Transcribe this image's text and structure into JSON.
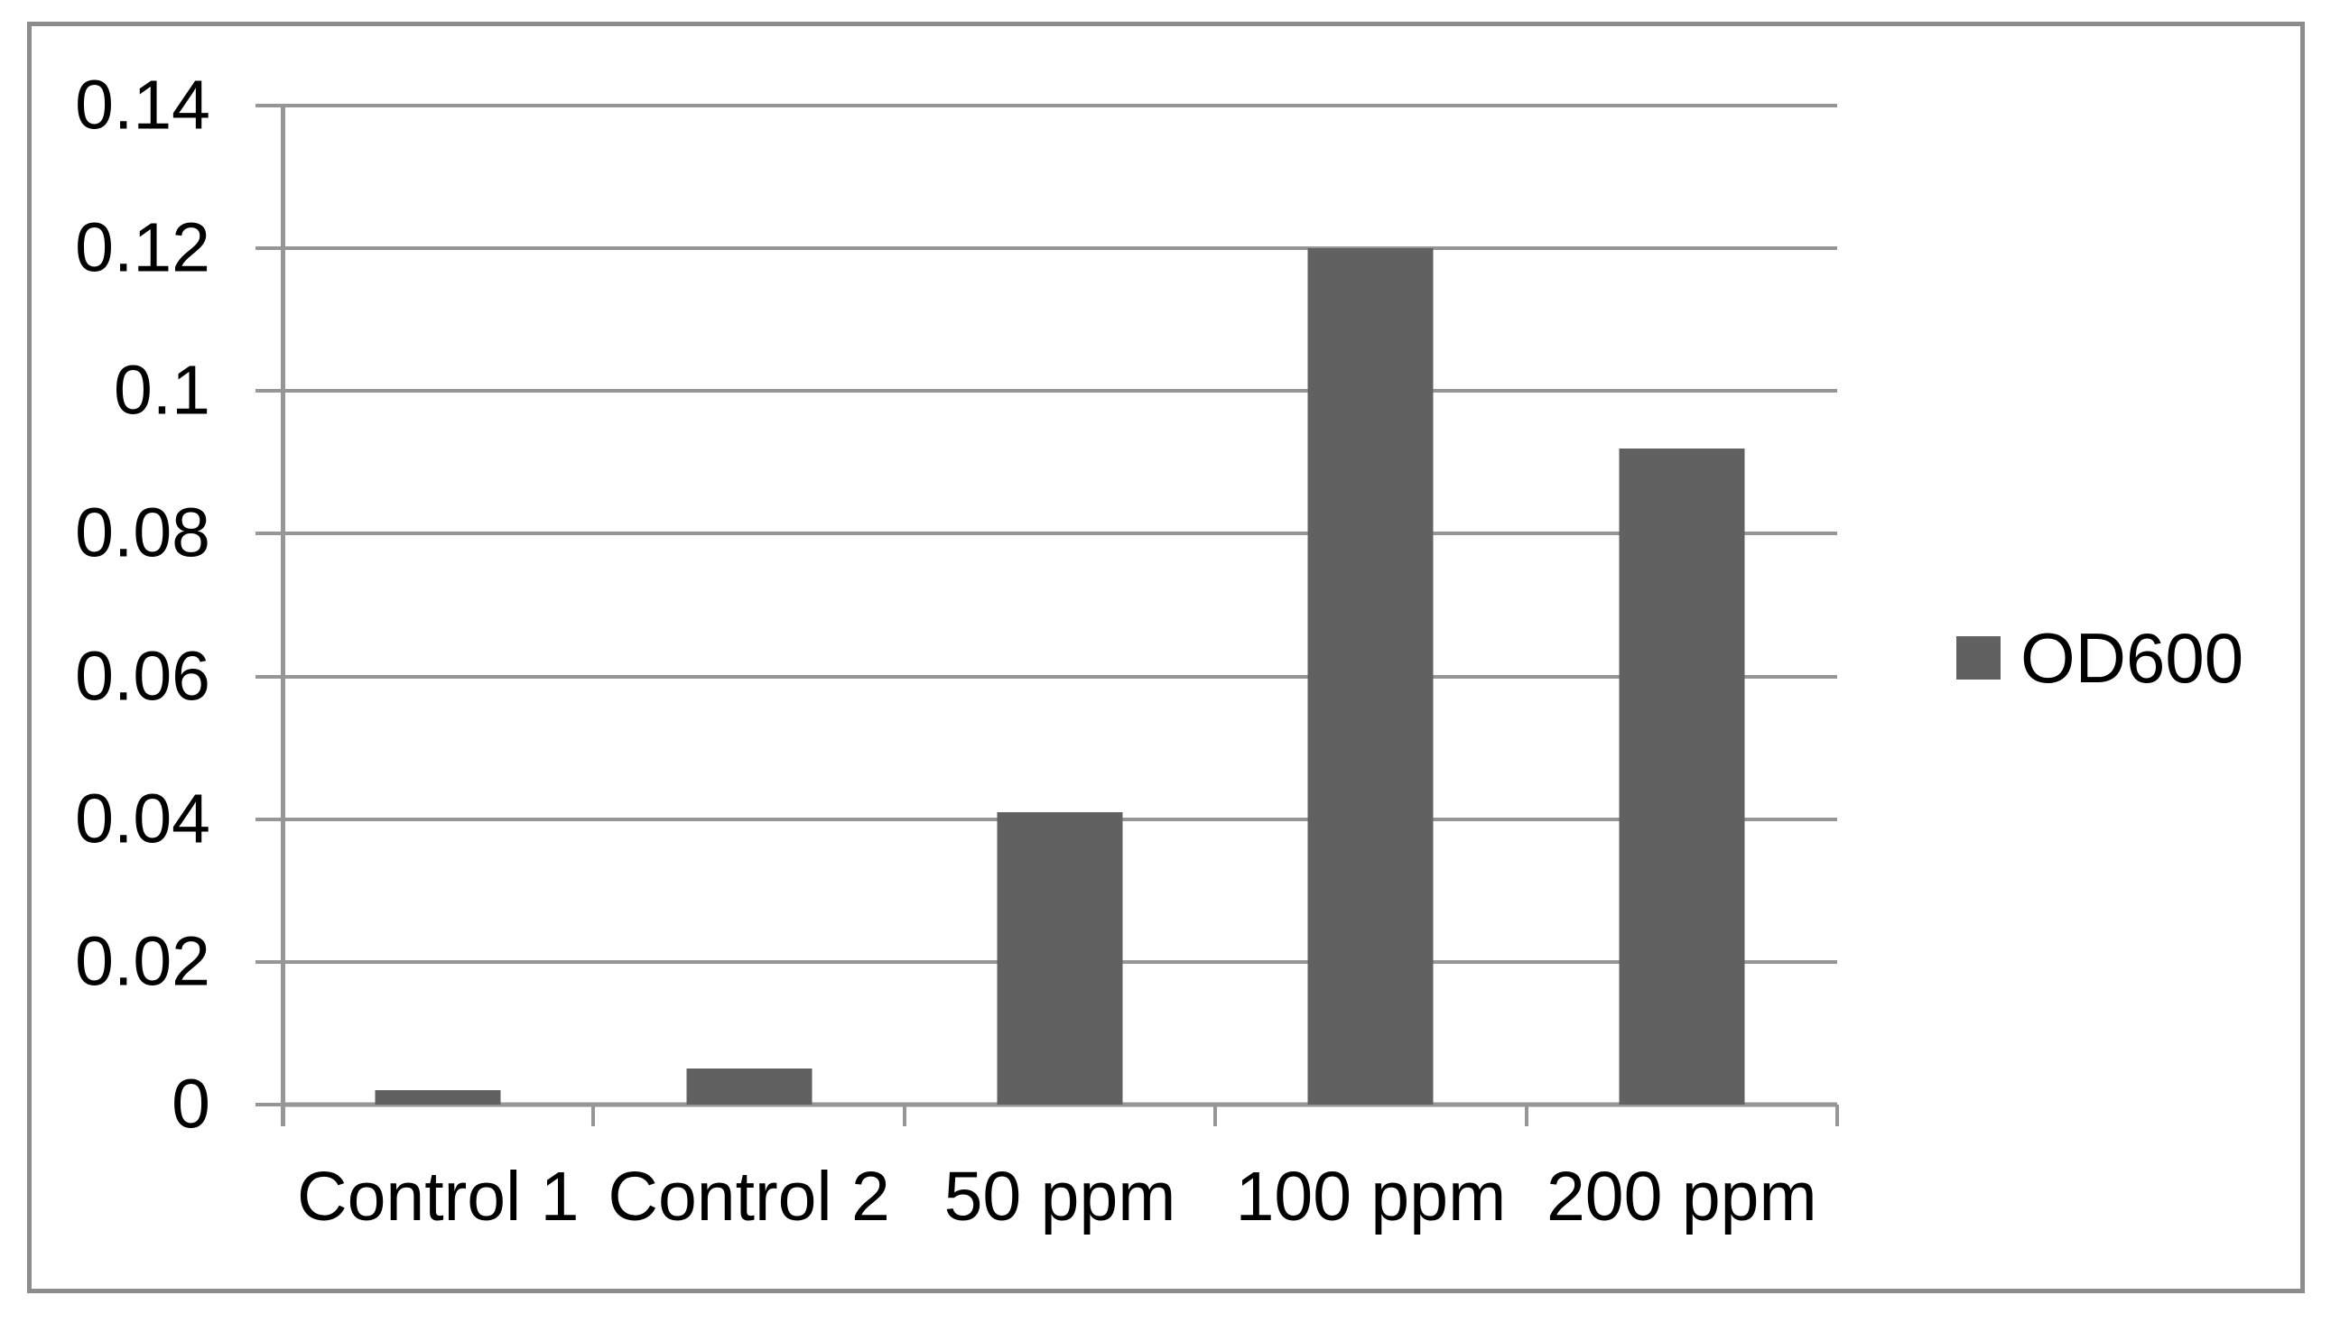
{
  "chart_data": {
    "type": "bar",
    "title": "",
    "xlabel": "",
    "ylabel": "",
    "categories": [
      "Control 1",
      "Control 2",
      "50 ppm",
      "100 ppm",
      "200 ppm"
    ],
    "series": [
      {
        "name": "OD600",
        "values": [
          0.002,
          0.005,
          0.041,
          0.12,
          0.092
        ]
      }
    ],
    "ylim": [
      0,
      0.14
    ],
    "ytick_step": 0.02,
    "ytick_labels": [
      "0",
      "0.02",
      "0.04",
      "0.06",
      "0.08",
      "0.1",
      "0.12",
      "0.14"
    ],
    "grid": true,
    "legend": {
      "position": "right",
      "entries": [
        "OD600"
      ]
    },
    "colors": {
      "bar": "#616161",
      "gridline": "#969696",
      "frame_border": "#8C8C8C",
      "text": "#000000",
      "background": "#FFFFFF"
    }
  }
}
